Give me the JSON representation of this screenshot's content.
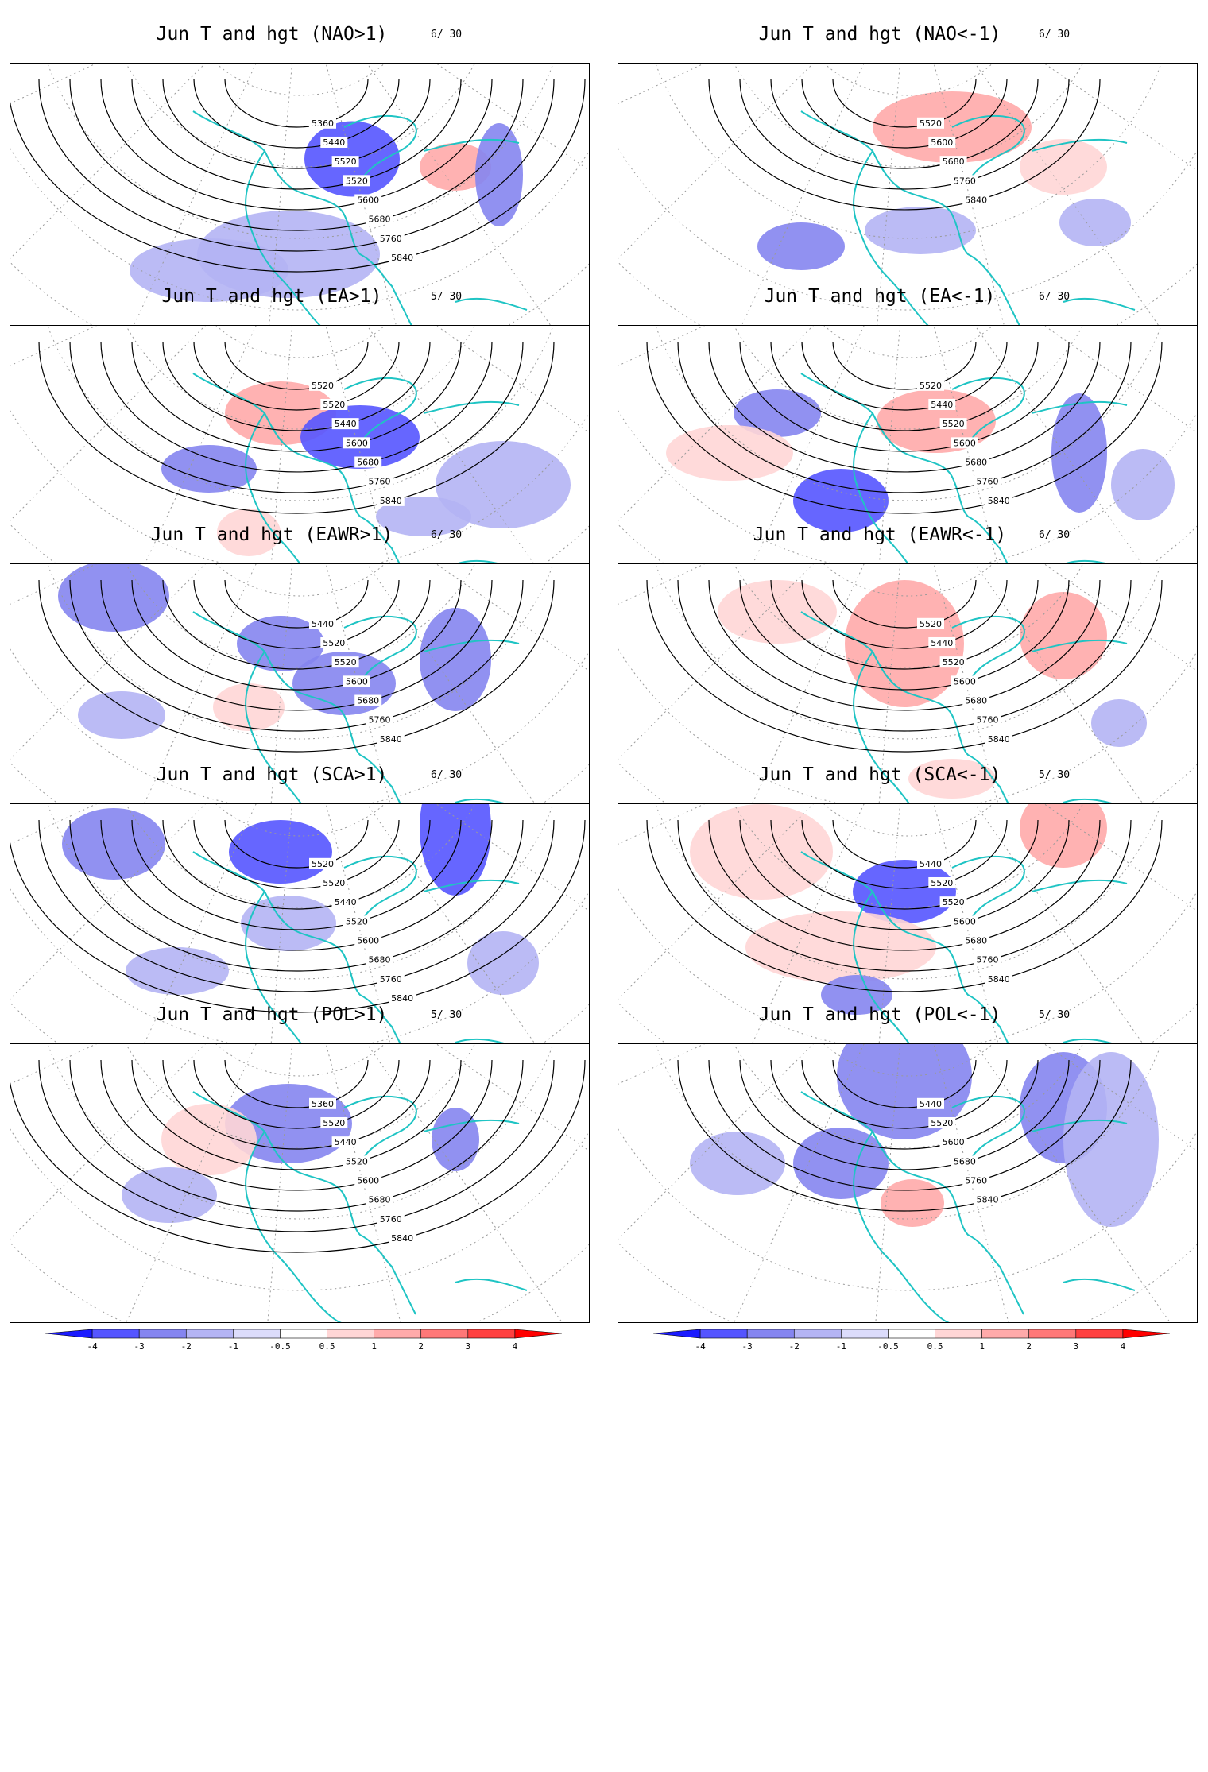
{
  "colors": {
    "coast": "#1fc4c4",
    "contour": "#000000",
    "grid": "#9a9a9a",
    "scale": [
      "#1a1aff",
      "#5555ff",
      "#8585f0",
      "#b4b4f4",
      "#dcdcfb",
      "#ffffff",
      "#ffd6d6",
      "#ffaaaa",
      "#ff7878",
      "#ff4040",
      "#ff0000"
    ]
  },
  "colorbar": {
    "labels": [
      "-4",
      "-3",
      "-2",
      "-1",
      "-0.5",
      "0.5",
      "1",
      "2",
      "3",
      "4"
    ]
  },
  "panels": [
    {
      "title": "Jun T and hgt (NAO>1)",
      "count": "6/ 30",
      "contours": [
        "5360",
        "5440",
        "5520",
        "5520",
        "5600",
        "5680",
        "5760",
        "5840"
      ],
      "blobs": [
        {
          "x": 430,
          "y": 120,
          "w": 120,
          "h": 95,
          "c": "b3"
        },
        {
          "x": 560,
          "y": 130,
          "w": 90,
          "h": 60,
          "c": "r2"
        },
        {
          "x": 615,
          "y": 140,
          "w": 60,
          "h": 130,
          "c": "b2"
        },
        {
          "x": 350,
          "y": 240,
          "w": 230,
          "h": 110,
          "c": "b1"
        },
        {
          "x": 250,
          "y": 260,
          "w": 200,
          "h": 80,
          "c": "b1"
        }
      ]
    },
    {
      "title": "Jun T and hgt (NAO<-1)",
      "count": "6/ 30",
      "contours": [
        "5520",
        "5600",
        "5680",
        "5760",
        "5840"
      ],
      "blobs": [
        {
          "x": 420,
          "y": 80,
          "w": 200,
          "h": 90,
          "c": "r2"
        },
        {
          "x": 560,
          "y": 130,
          "w": 110,
          "h": 70,
          "c": "r1"
        },
        {
          "x": 380,
          "y": 210,
          "w": 140,
          "h": 60,
          "c": "b1"
        },
        {
          "x": 230,
          "y": 230,
          "w": 110,
          "h": 60,
          "c": "b2"
        },
        {
          "x": 600,
          "y": 200,
          "w": 90,
          "h": 60,
          "c": "b1"
        }
      ]
    },
    {
      "title": "Jun T and hgt (EA>1)",
      "count": "5/ 30",
      "contours": [
        "5520",
        "5520",
        "5440",
        "5600",
        "5680",
        "5760",
        "5840"
      ],
      "blobs": [
        {
          "x": 340,
          "y": 110,
          "w": 140,
          "h": 80,
          "c": "r2"
        },
        {
          "x": 440,
          "y": 140,
          "w": 150,
          "h": 80,
          "c": "b3"
        },
        {
          "x": 250,
          "y": 180,
          "w": 120,
          "h": 60,
          "c": "b2"
        },
        {
          "x": 620,
          "y": 200,
          "w": 170,
          "h": 110,
          "c": "b1"
        },
        {
          "x": 520,
          "y": 240,
          "w": 120,
          "h": 50,
          "c": "b1"
        },
        {
          "x": 300,
          "y": 260,
          "w": 80,
          "h": 60,
          "c": "r1"
        }
      ]
    },
    {
      "title": "Jun T and hgt (EA<-1)",
      "count": "6/ 30",
      "contours": [
        "5520",
        "5440",
        "5520",
        "5600",
        "5680",
        "5760",
        "5840"
      ],
      "blobs": [
        {
          "x": 280,
          "y": 220,
          "w": 120,
          "h": 80,
          "c": "b3"
        },
        {
          "x": 400,
          "y": 120,
          "w": 150,
          "h": 80,
          "c": "r2"
        },
        {
          "x": 200,
          "y": 110,
          "w": 110,
          "h": 60,
          "c": "b2"
        },
        {
          "x": 580,
          "y": 160,
          "w": 70,
          "h": 150,
          "c": "b2"
        },
        {
          "x": 660,
          "y": 200,
          "w": 80,
          "h": 90,
          "c": "b1"
        },
        {
          "x": 140,
          "y": 160,
          "w": 160,
          "h": 70,
          "c": "r1"
        }
      ]
    },
    {
      "title": "Jun T and hgt (EAWR>1)",
      "count": "6/ 30",
      "contours": [
        "5440",
        "5520",
        "5520",
        "5600",
        "5680",
        "5760",
        "5840"
      ],
      "blobs": [
        {
          "x": 130,
          "y": 40,
          "w": 140,
          "h": 90,
          "c": "b2"
        },
        {
          "x": 340,
          "y": 100,
          "w": 110,
          "h": 70,
          "c": "b2"
        },
        {
          "x": 420,
          "y": 150,
          "w": 130,
          "h": 80,
          "c": "b2"
        },
        {
          "x": 300,
          "y": 180,
          "w": 90,
          "h": 60,
          "c": "r1"
        },
        {
          "x": 560,
          "y": 120,
          "w": 90,
          "h": 130,
          "c": "b2"
        },
        {
          "x": 140,
          "y": 190,
          "w": 110,
          "h": 60,
          "c": "b1"
        }
      ]
    },
    {
      "title": "Jun T and hgt (EAWR<-1)",
      "count": "6/ 30",
      "contours": [
        "5520",
        "5440",
        "5520",
        "5600",
        "5680",
        "5760",
        "5840"
      ],
      "blobs": [
        {
          "x": 200,
          "y": 60,
          "w": 150,
          "h": 80,
          "c": "r1"
        },
        {
          "x": 360,
          "y": 100,
          "w": 150,
          "h": 160,
          "c": "r2"
        },
        {
          "x": 560,
          "y": 90,
          "w": 110,
          "h": 110,
          "c": "r2"
        },
        {
          "x": 630,
          "y": 200,
          "w": 70,
          "h": 60,
          "c": "b1"
        },
        {
          "x": 420,
          "y": 270,
          "w": 110,
          "h": 50,
          "c": "r1"
        }
      ]
    },
    {
      "title": "Jun T and hgt (SCA>1)",
      "count": "6/ 30",
      "contours": [
        "5520",
        "5520",
        "5440",
        "5520",
        "5600",
        "5680",
        "5760",
        "5840"
      ],
      "blobs": [
        {
          "x": 130,
          "y": 50,
          "w": 130,
          "h": 90,
          "c": "b2"
        },
        {
          "x": 340,
          "y": 60,
          "w": 130,
          "h": 80,
          "c": "b3"
        },
        {
          "x": 560,
          "y": 30,
          "w": 90,
          "h": 170,
          "c": "b3"
        },
        {
          "x": 350,
          "y": 150,
          "w": 120,
          "h": 70,
          "c": "b1"
        },
        {
          "x": 210,
          "y": 210,
          "w": 130,
          "h": 60,
          "c": "b1"
        },
        {
          "x": 620,
          "y": 200,
          "w": 90,
          "h": 80,
          "c": "b1"
        }
      ]
    },
    {
      "title": "Jun T and hgt (SCA<-1)",
      "count": "5/ 30",
      "contours": [
        "5440",
        "5520",
        "5520",
        "5600",
        "5680",
        "5760",
        "5840"
      ],
      "blobs": [
        {
          "x": 180,
          "y": 60,
          "w": 180,
          "h": 120,
          "c": "r1"
        },
        {
          "x": 360,
          "y": 110,
          "w": 130,
          "h": 80,
          "c": "b3"
        },
        {
          "x": 560,
          "y": 30,
          "w": 110,
          "h": 100,
          "c": "r2"
        },
        {
          "x": 280,
          "y": 180,
          "w": 240,
          "h": 90,
          "c": "r1"
        },
        {
          "x": 300,
          "y": 240,
          "w": 90,
          "h": 50,
          "c": "b2"
        }
      ]
    },
    {
      "title": "Jun T and hgt (POL>1)",
      "count": "5/ 30",
      "contours": [
        "5360",
        "5520",
        "5440",
        "5520",
        "5600",
        "5680",
        "5760",
        "5840"
      ],
      "blobs": [
        {
          "x": 350,
          "y": 100,
          "w": 160,
          "h": 100,
          "c": "b2"
        },
        {
          "x": 250,
          "y": 120,
          "w": 120,
          "h": 90,
          "c": "r1"
        },
        {
          "x": 560,
          "y": 120,
          "w": 60,
          "h": 80,
          "c": "b2"
        },
        {
          "x": 200,
          "y": 190,
          "w": 120,
          "h": 70,
          "c": "b1"
        }
      ]
    },
    {
      "title": "Jun T and hgt (POL<-1)",
      "count": "5/ 30",
      "contours": [
        "5440",
        "5520",
        "5600",
        "5680",
        "5760",
        "5840"
      ],
      "blobs": [
        {
          "x": 360,
          "y": 40,
          "w": 170,
          "h": 160,
          "c": "b2"
        },
        {
          "x": 560,
          "y": 80,
          "w": 110,
          "h": 140,
          "c": "b2"
        },
        {
          "x": 280,
          "y": 150,
          "w": 120,
          "h": 90,
          "c": "b2"
        },
        {
          "x": 370,
          "y": 200,
          "w": 80,
          "h": 60,
          "c": "r2"
        },
        {
          "x": 620,
          "y": 120,
          "w": 120,
          "h": 220,
          "c": "b1"
        },
        {
          "x": 150,
          "y": 150,
          "w": 120,
          "h": 80,
          "c": "b1"
        }
      ]
    }
  ]
}
